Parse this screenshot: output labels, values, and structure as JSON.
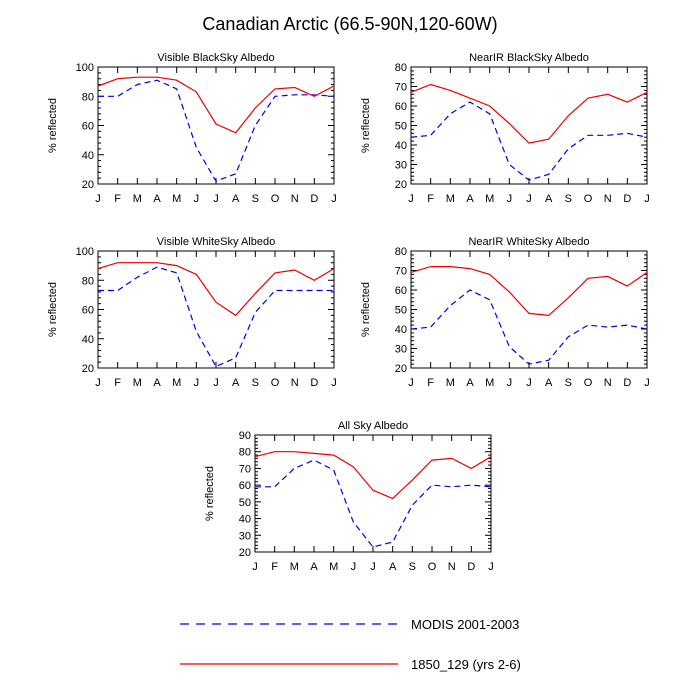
{
  "figure_title": "Canadian Arctic (66.5-90N,120-60W)",
  "colors": {
    "modis": "#0000ee",
    "model": "#ee0000",
    "axis": "#000000"
  },
  "legend": {
    "modis_label": "MODIS 2001-2003",
    "model_label": "1850_129 (yrs 2-6)"
  },
  "chart_data": [
    {
      "type": "line",
      "title": "Visible BlackSky Albedo",
      "xlabel": "",
      "ylabel": "% reflected",
      "categories": [
        "J",
        "F",
        "M",
        "A",
        "M",
        "J",
        "J",
        "A",
        "S",
        "O",
        "N",
        "D",
        "J"
      ],
      "ylim": [
        20,
        100
      ],
      "yticks": [
        20,
        40,
        60,
        80,
        100
      ],
      "series": [
        {
          "name": "MODIS 2001-2003",
          "style": "dashed",
          "values": [
            80,
            80,
            88,
            91,
            85,
            45,
            22,
            27,
            60,
            80,
            81,
            81,
            80
          ]
        },
        {
          "name": "1850_129 (yrs 2-6)",
          "style": "solid",
          "values": [
            87,
            92,
            93,
            93,
            91,
            83,
            61,
            55,
            72,
            85,
            86,
            80,
            87
          ]
        }
      ]
    },
    {
      "type": "line",
      "title": "NearIR BlackSky Albedo",
      "xlabel": "",
      "ylabel": "% reflected",
      "categories": [
        "J",
        "F",
        "M",
        "A",
        "M",
        "J",
        "J",
        "A",
        "S",
        "O",
        "N",
        "D",
        "J"
      ],
      "ylim": [
        20,
        80
      ],
      "yticks": [
        20,
        30,
        40,
        50,
        60,
        70,
        80
      ],
      "series": [
        {
          "name": "MODIS 2001-2003",
          "style": "dashed",
          "values": [
            44,
            45,
            56,
            62,
            56,
            30,
            22,
            25,
            38,
            45,
            45,
            46,
            44
          ]
        },
        {
          "name": "1850_129 (yrs 2-6)",
          "style": "solid",
          "values": [
            67,
            71,
            68,
            64,
            60,
            51,
            41,
            43,
            55,
            64,
            66,
            62,
            67
          ]
        }
      ]
    },
    {
      "type": "line",
      "title": "Visible WhiteSky Albedo",
      "xlabel": "",
      "ylabel": "% reflected",
      "categories": [
        "J",
        "F",
        "M",
        "A",
        "M",
        "J",
        "J",
        "A",
        "S",
        "O",
        "N",
        "D",
        "J"
      ],
      "ylim": [
        20,
        100
      ],
      "yticks": [
        20,
        40,
        60,
        80,
        100
      ],
      "series": [
        {
          "name": "MODIS 2001-2003",
          "style": "dashed",
          "values": [
            73,
            73,
            82,
            89,
            85,
            45,
            21,
            27,
            58,
            73,
            73,
            73,
            73
          ]
        },
        {
          "name": "1850_129 (yrs 2-6)",
          "style": "solid",
          "values": [
            88,
            92,
            92,
            92,
            90,
            84,
            65,
            56,
            71,
            85,
            87,
            80,
            88
          ]
        }
      ]
    },
    {
      "type": "line",
      "title": "NearIR WhiteSky Albedo",
      "xlabel": "",
      "ylabel": "% reflected",
      "categories": [
        "J",
        "F",
        "M",
        "A",
        "M",
        "J",
        "J",
        "A",
        "S",
        "O",
        "N",
        "D",
        "J"
      ],
      "ylim": [
        20,
        80
      ],
      "yticks": [
        20,
        30,
        40,
        50,
        60,
        70,
        80
      ],
      "series": [
        {
          "name": "MODIS 2001-2003",
          "style": "dashed",
          "values": [
            40,
            41,
            52,
            60,
            55,
            31,
            22,
            24,
            36,
            42,
            41,
            42,
            40
          ]
        },
        {
          "name": "1850_129 (yrs 2-6)",
          "style": "solid",
          "values": [
            69,
            72,
            72,
            71,
            68,
            59,
            48,
            47,
            56,
            66,
            67,
            62,
            69
          ]
        }
      ]
    },
    {
      "type": "line",
      "title": "All Sky Albedo",
      "xlabel": "",
      "ylabel": "% reflected",
      "categories": [
        "J",
        "F",
        "M",
        "A",
        "M",
        "J",
        "J",
        "A",
        "S",
        "O",
        "N",
        "D",
        "J"
      ],
      "ylim": [
        20,
        90
      ],
      "yticks": [
        20,
        30,
        40,
        50,
        60,
        70,
        80,
        90
      ],
      "series": [
        {
          "name": "MODIS 2001-2003",
          "style": "dashed",
          "values": [
            59,
            59,
            70,
            75,
            69,
            38,
            23,
            26,
            48,
            60,
            59,
            60,
            59
          ]
        },
        {
          "name": "1850_129 (yrs 2-6)",
          "style": "solid",
          "values": [
            77,
            80,
            80,
            79,
            78,
            71,
            57,
            52,
            63,
            75,
            76,
            70,
            77
          ]
        }
      ]
    }
  ]
}
